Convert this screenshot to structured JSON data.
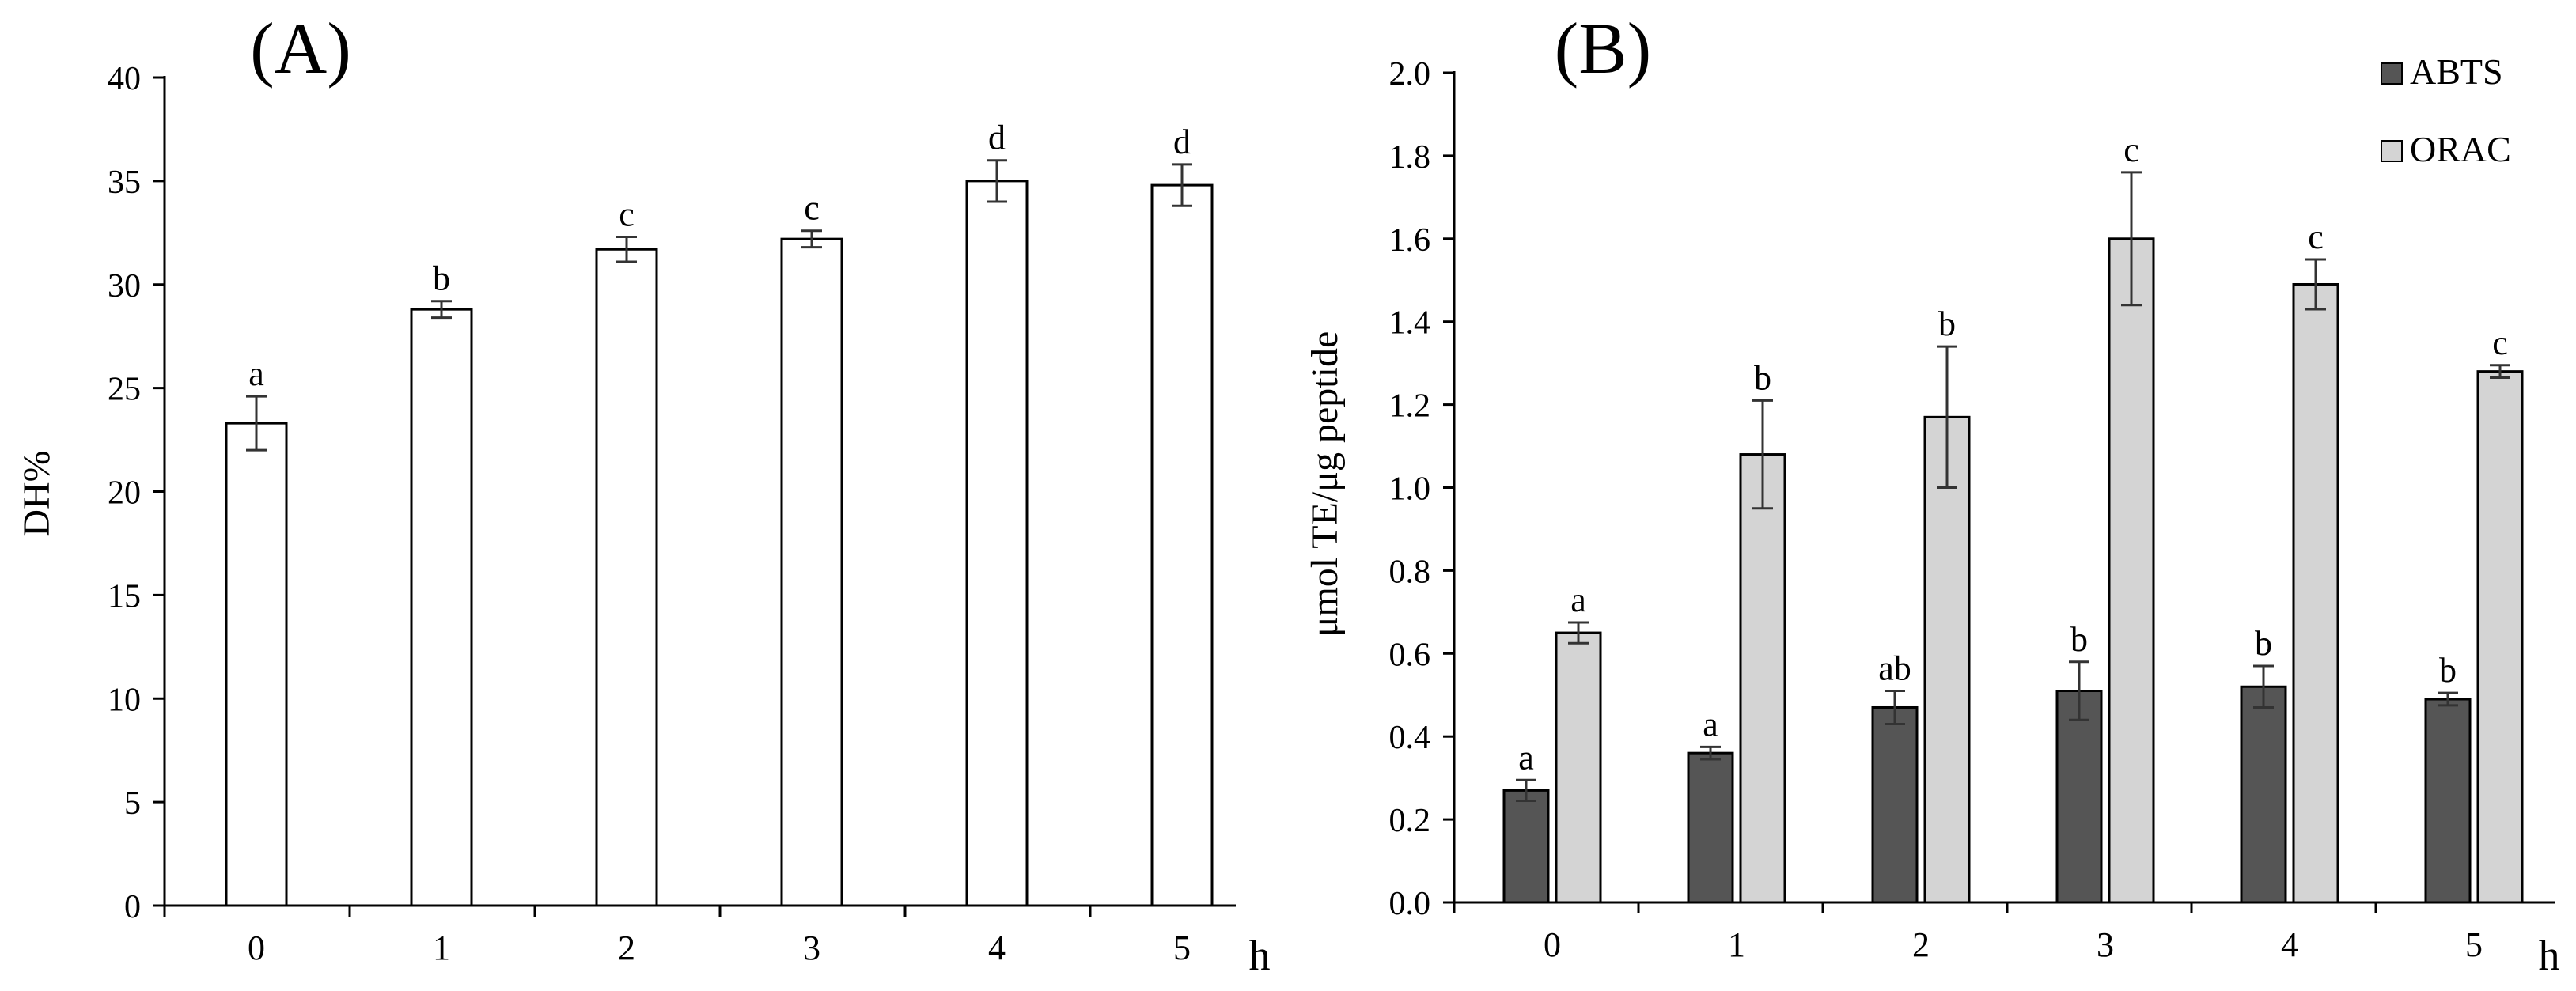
{
  "chart_data": [
    {
      "type": "bar",
      "panel_label": "(A)",
      "categories": [
        "0",
        "1",
        "2",
        "3",
        "4",
        "5"
      ],
      "x_unit": "h",
      "ylabel": "DH%",
      "ylim": [
        0,
        40
      ],
      "yticks": [
        "0",
        "5",
        "10",
        "15",
        "20",
        "25",
        "30",
        "35",
        "40"
      ],
      "series": [
        {
          "name": "DH",
          "values": [
            23.3,
            28.8,
            31.7,
            32.2,
            35.0,
            34.8
          ],
          "errors": [
            1.3,
            0.4,
            0.6,
            0.4,
            1.0,
            1.0
          ],
          "letters": [
            "a",
            "b",
            "c",
            "c",
            "d",
            "d"
          ],
          "color": "#ffffff"
        }
      ]
    },
    {
      "type": "bar",
      "panel_label": "(B)",
      "categories": [
        "0",
        "1",
        "2",
        "3",
        "4",
        "5"
      ],
      "x_unit": "h",
      "ylabel": "μmol TE/μg peptide",
      "ylim": [
        0,
        2.0
      ],
      "yticks": [
        "0.0",
        "0.2",
        "0.4",
        "0.6",
        "0.8",
        "1.0",
        "1.2",
        "1.4",
        "1.6",
        "1.8",
        "2.0"
      ],
      "legend": [
        "ABTS",
        "ORAC"
      ],
      "legend_position": "top-right",
      "series": [
        {
          "name": "ABTS",
          "values": [
            0.27,
            0.36,
            0.47,
            0.51,
            0.52,
            0.49
          ],
          "errors": [
            0.025,
            0.015,
            0.04,
            0.07,
            0.05,
            0.015
          ],
          "letters": [
            "a",
            "a",
            "ab",
            "b",
            "b",
            "b"
          ],
          "color": "#555555"
        },
        {
          "name": "ORAC",
          "values": [
            0.65,
            1.08,
            1.17,
            1.6,
            1.49,
            1.28
          ],
          "errors": [
            0.025,
            0.13,
            0.17,
            0.16,
            0.06,
            0.015
          ],
          "letters": [
            "a",
            "b",
            "b",
            "c",
            "c",
            "c"
          ],
          "color": "#d4d4d4"
        }
      ]
    }
  ]
}
